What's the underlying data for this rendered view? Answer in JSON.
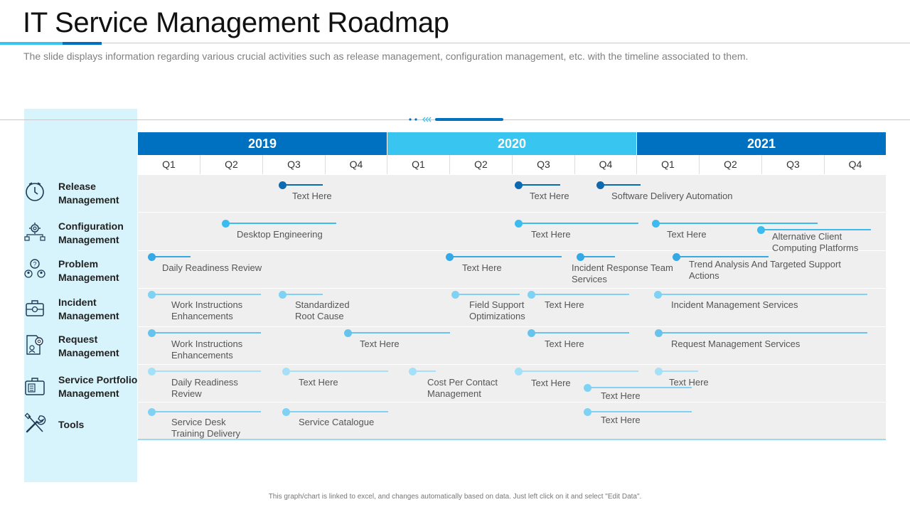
{
  "title": "IT Service Management Roadmap",
  "subtitle": "The slide displays information regarding various crucial activities such as release management, configuration management, etc. with the timeline associated to them.",
  "years": [
    {
      "label": "2019",
      "color": "#0070c0"
    },
    {
      "label": "2020",
      "color": "#38c5f0"
    },
    {
      "label": "2021",
      "color": "#0070c0"
    }
  ],
  "quarters": [
    "Q1",
    "Q2",
    "Q3",
    "Q4",
    "Q1",
    "Q2",
    "Q3",
    "Q4",
    "Q1",
    "Q2",
    "Q3",
    "Q4"
  ],
  "categories": [
    {
      "label": "Release\nManagement",
      "icon": "timer-icon"
    },
    {
      "label": "Configuration\nManagement",
      "icon": "gears-network-icon"
    },
    {
      "label": "Problem\nManagement",
      "icon": "problem-users-icon"
    },
    {
      "label": "Incident\nManagement",
      "icon": "briefcase-gear-icon"
    },
    {
      "label": "Request\nManagement",
      "icon": "document-gear-icon"
    },
    {
      "label": "Service Portfolio\nManagement",
      "icon": "portfolio-briefcase-icon"
    },
    {
      "label": "Tools",
      "icon": "tools-icon"
    }
  ],
  "activities": [
    {
      "text": "Text Here",
      "color": "#0e6ab0"
    },
    {
      "text": "Text Here",
      "color": "#0e6ab0"
    },
    {
      "text": "Software Delivery  Automation",
      "color": "#0e6ab0"
    },
    {
      "text": "Desktop Engineering",
      "color": "#3cbcee"
    },
    {
      "text": "Text Here",
      "color": "#3cbcee"
    },
    {
      "text": "Text Here",
      "color": "#3cbcee"
    },
    {
      "text": "Alternative  Client\nComputing  Platforms",
      "color": "#3cbcee"
    },
    {
      "text": "Daily  Readiness Review",
      "color": "#35a8e6"
    },
    {
      "text": "Text Here",
      "color": "#35a8e6"
    },
    {
      "text": "Incident Response Team\nServices",
      "color": "#35a8e6"
    },
    {
      "text": "Trend  Analysis And Targeted Support\nActions",
      "color": "#35a8e6"
    },
    {
      "text": "Work Instructions\nEnhancements",
      "color": "#7fd2f3"
    },
    {
      "text": "Standardized\nRoot Cause",
      "color": "#7fd2f3"
    },
    {
      "text": "Field Support\nOptimizations",
      "color": "#7fd2f3"
    },
    {
      "text": "Text Here",
      "color": "#7fd2f3"
    },
    {
      "text": "Incident Management  Services",
      "color": "#7fd2f3"
    },
    {
      "text": "Work Instructions\nEnhancements",
      "color": "#68c3ec"
    },
    {
      "text": "Text Here",
      "color": "#68c3ec"
    },
    {
      "text": "Text Here",
      "color": "#68c3ec"
    },
    {
      "text": "Request Management  Services",
      "color": "#68c3ec"
    },
    {
      "text": "Daily Readiness\nReview",
      "color": "#a4e0f7"
    },
    {
      "text": "Text Here",
      "color": "#a4e0f7"
    },
    {
      "text": "Cost Per Contact\nManagement",
      "color": "#a4e0f7"
    },
    {
      "text": "Text Here",
      "color": "#a4e0f7"
    },
    {
      "text": "Text Here",
      "color": "#a4e0f7"
    },
    {
      "text": "Text Here",
      "color": "#7fd2f3"
    },
    {
      "text": "Service Desk\nTraining  Delivery",
      "color": "#7fd2f3"
    },
    {
      "text": "Service Catalogue",
      "color": "#7fd2f3"
    },
    {
      "text": "Text Here",
      "color": "#7fd2f3"
    }
  ],
  "footer": "This graph/chart is linked to excel, and changes automatically based on data. Just left click on it and select \"Edit Data\"."
}
